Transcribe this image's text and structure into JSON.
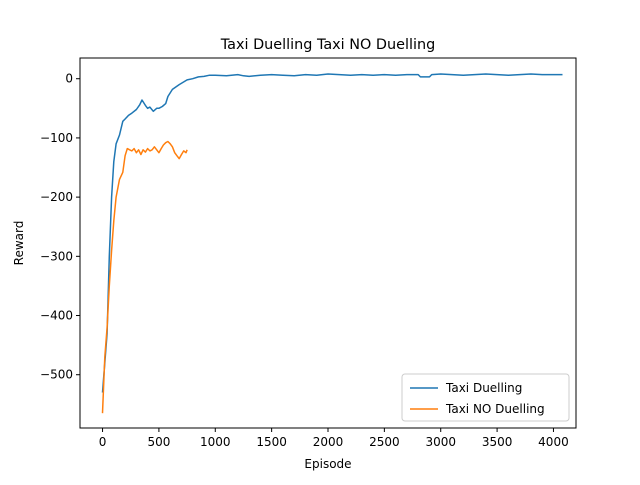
{
  "chart_data": {
    "type": "line",
    "title": "Taxi Duelling Taxi NO Duelling",
    "xlabel": "Episode",
    "ylabel": "Reward",
    "xlim": [
      -200,
      4200
    ],
    "ylim": [
      -590,
      35
    ],
    "xticks": [
      0,
      500,
      1000,
      1500,
      2000,
      2500,
      3000,
      3500,
      4000
    ],
    "yticks": [
      -500,
      -400,
      -300,
      -200,
      -100,
      0
    ],
    "xtick_labels": [
      "0",
      "500",
      "1000",
      "1500",
      "2000",
      "2500",
      "3000",
      "3500",
      "4000"
    ],
    "ytick_labels": [
      "−500",
      "−400",
      "−300",
      "−200",
      "−100",
      "0"
    ],
    "grid": false,
    "legend_position": "lower-right",
    "series": [
      {
        "name": "Taxi Duelling",
        "color": "#1f77b4",
        "x": [
          0,
          20,
          40,
          60,
          80,
          100,
          120,
          150,
          180,
          200,
          230,
          260,
          300,
          330,
          350,
          380,
          400,
          420,
          450,
          480,
          500,
          530,
          560,
          580,
          620,
          680,
          750,
          800,
          850,
          900,
          950,
          1000,
          1100,
          1200,
          1250,
          1300,
          1400,
          1500,
          1600,
          1700,
          1800,
          1900,
          2000,
          2100,
          2200,
          2300,
          2400,
          2500,
          2600,
          2700,
          2800,
          2820,
          2900,
          2920,
          3000,
          3100,
          3200,
          3300,
          3400,
          3500,
          3600,
          3700,
          3800,
          3900,
          4000,
          4080
        ],
        "y": [
          -530,
          -480,
          -430,
          -300,
          -200,
          -140,
          -110,
          -95,
          -72,
          -68,
          -62,
          -58,
          -52,
          -44,
          -36,
          -45,
          -50,
          -48,
          -55,
          -50,
          -50,
          -47,
          -42,
          -30,
          -18,
          -10,
          -2,
          0,
          3,
          4,
          6,
          6,
          5,
          7,
          5,
          4,
          6,
          7,
          6,
          5,
          7,
          6,
          8,
          7,
          6,
          7,
          6,
          7,
          6,
          7,
          7,
          3,
          3,
          7,
          8,
          7,
          6,
          7,
          8,
          7,
          6,
          7,
          8,
          7,
          7,
          7
        ]
      },
      {
        "name": "Taxi NO Duelling",
        "color": "#ff7f0e",
        "x": [
          0,
          20,
          40,
          60,
          80,
          100,
          120,
          150,
          180,
          200,
          220,
          240,
          260,
          280,
          300,
          320,
          340,
          360,
          380,
          400,
          420,
          440,
          460,
          480,
          500,
          520,
          540,
          560,
          580,
          600,
          620,
          640,
          660,
          680,
          700,
          720,
          740,
          750
        ],
        "y": [
          -565,
          -470,
          -420,
          -350,
          -290,
          -240,
          -200,
          -170,
          -158,
          -130,
          -118,
          -120,
          -122,
          -118,
          -125,
          -120,
          -128,
          -120,
          -124,
          -118,
          -122,
          -120,
          -115,
          -120,
          -125,
          -118,
          -112,
          -108,
          -106,
          -110,
          -115,
          -125,
          -130,
          -135,
          -128,
          -122,
          -125,
          -120
        ]
      }
    ]
  }
}
